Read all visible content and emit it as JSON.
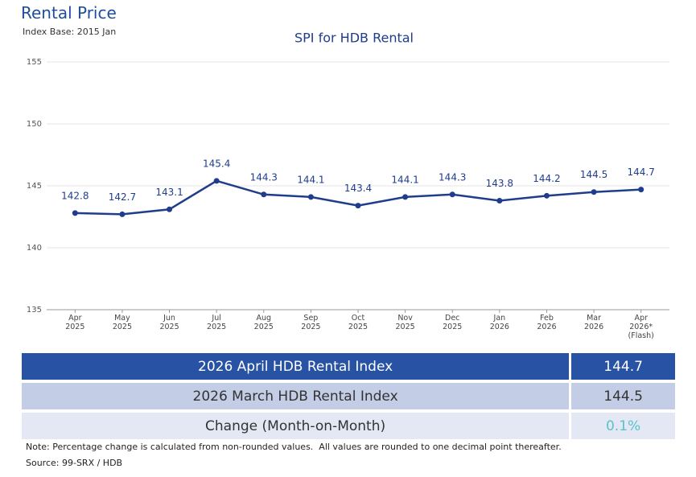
{
  "header": {
    "title": "Rental Price",
    "subtitle": "Index Base: 2015 Jan"
  },
  "chart_data": {
    "type": "line",
    "title": "SPI for HDB Rental",
    "categories": [
      "Apr\n2025",
      "May\n2025",
      "Jun\n2025",
      "Jul\n2025",
      "Aug\n2025",
      "Sep\n2025",
      "Oct\n2025",
      "Nov\n2025",
      "Dec\n2025",
      "Jan\n2026",
      "Feb\n2026",
      "Mar\n2026",
      "Apr\n2026*\n(Flash)"
    ],
    "values": [
      142.8,
      142.7,
      143.1,
      145.4,
      144.3,
      144.1,
      143.4,
      144.1,
      144.3,
      143.8,
      144.2,
      144.5,
      144.7
    ],
    "color": "#1f3d8c",
    "ylim": [
      135,
      155
    ],
    "yticks": [
      135,
      140,
      145,
      150,
      155
    ],
    "grid": true
  },
  "table": {
    "rows": [
      [
        "2026 April HDB Rental Index",
        "144.7"
      ],
      [
        "2026 March HDB Rental Index",
        "144.5"
      ],
      [
        "Change (Month-on-Month)",
        "0.1%"
      ]
    ]
  },
  "note": "Note: Percentage change is calculated from non-rounded values.  All values are rounded to one decimal point thereafter.",
  "source": "Source: 99-SRX / HDB"
}
